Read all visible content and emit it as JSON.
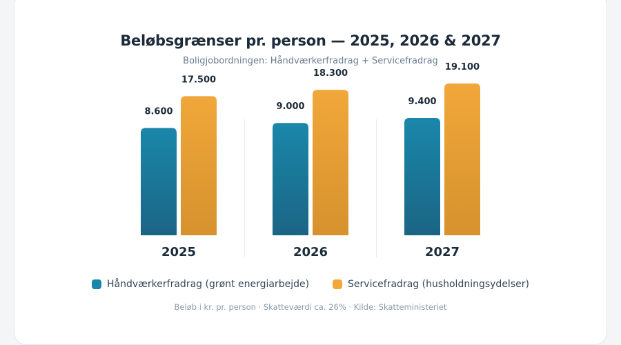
{
  "chart_data": {
    "type": "bar",
    "title": "Beløbsgrænser pr. person — 2025, 2026 & 2027",
    "subtitle": "Boligjobordningen: Håndværkerfradrag + Servicefradrag",
    "categories": [
      "2025",
      "2026",
      "2027"
    ],
    "series": [
      {
        "name": "Håndværkerfradrag (grønt energiarbejde)",
        "values": [
          8600,
          9000,
          9400
        ],
        "labels": [
          "8.600",
          "9.000",
          "9.400"
        ],
        "color": "#1a87aa",
        "color_bottom": "#1b6584"
      },
      {
        "name": "Servicefradrag (husholdningsydelser)",
        "values": [
          17500,
          18300,
          19100
        ],
        "labels": [
          "17.500",
          "18.300",
          "19.100"
        ],
        "color": "#f1a73a",
        "color_bottom": "#d6922e"
      }
    ],
    "grid": false,
    "legend": "bottom",
    "footnote": "Beløb i kr. pr. person · Skatteværdi ca. 26% · Kilde: Skatteministeriet"
  }
}
